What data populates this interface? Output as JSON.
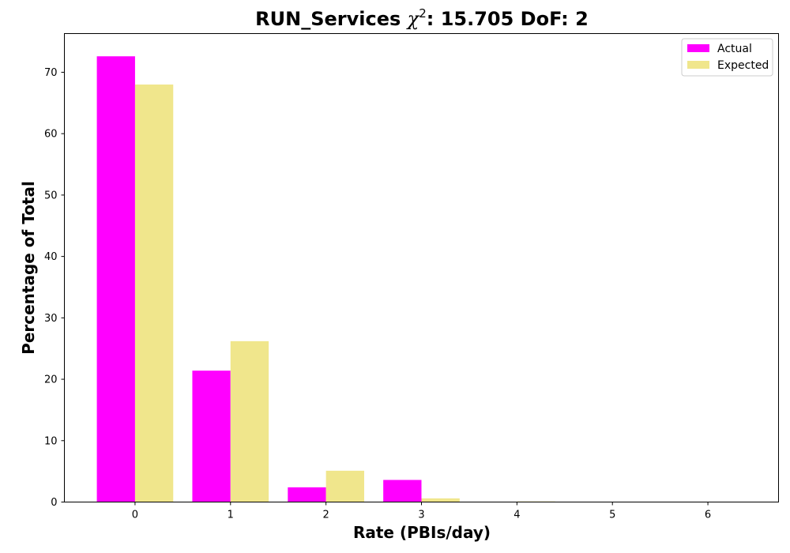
{
  "chart_data": {
    "type": "bar",
    "title_prefix": "RUN_Services ",
    "title_chi": "χ",
    "title_sup": "2",
    "title_suffix": ": 15.705 DoF: 2",
    "xlabel": "Rate (PBIs/day)",
    "ylabel": "Percentage of Total",
    "categories": [
      "0",
      "1",
      "2",
      "3",
      "4",
      "5",
      "6"
    ],
    "x": [
      0,
      1,
      2,
      3,
      4,
      5,
      6
    ],
    "xlim": [
      -0.74,
      6.74
    ],
    "ylim": [
      0,
      76.3
    ],
    "yticks": [
      0,
      10,
      20,
      30,
      40,
      50,
      60,
      70
    ],
    "series": [
      {
        "name": "Actual",
        "color": "#ff00ff",
        "values": [
          72.6,
          21.4,
          2.4,
          3.6,
          0.0,
          0.0,
          0.0
        ]
      },
      {
        "name": "Expected",
        "color": "#f0e68c",
        "values": [
          68.0,
          26.2,
          5.1,
          0.6,
          0.1,
          0.0,
          0.0
        ]
      }
    ],
    "legend_position": "top-right"
  }
}
